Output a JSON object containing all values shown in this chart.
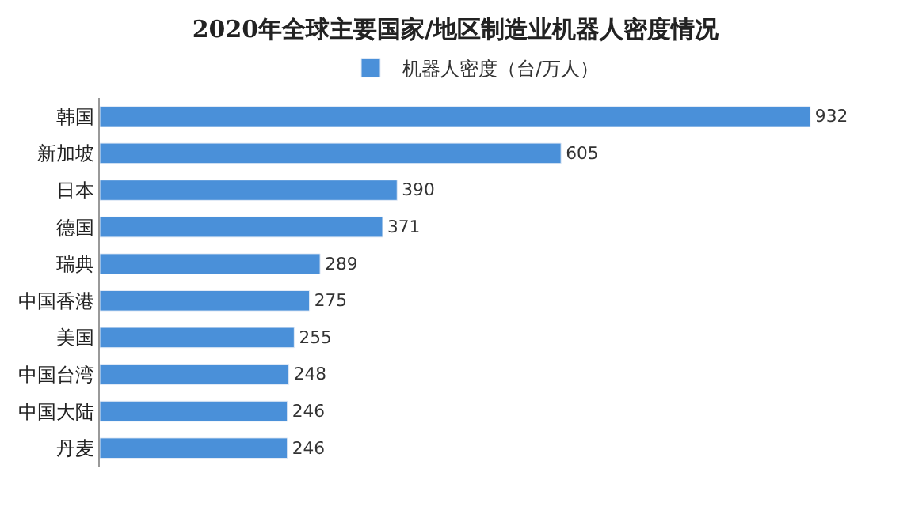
{
  "chart_data": {
    "type": "bar",
    "orientation": "horizontal",
    "title": "2020年全球主要国家/地区制造业机器人密度情况",
    "categories": [
      "韩国",
      "新加坡",
      "日本",
      "德国",
      "瑞典",
      "中国香港",
      "美国",
      "中国台湾",
      "中国大陆",
      "丹麦"
    ],
    "series": [
      {
        "name": "机器人密度（台/万人）",
        "color": "#4a90d9",
        "values": [
          932,
          605,
          390,
          371,
          289,
          275,
          255,
          248,
          246,
          246
        ]
      }
    ],
    "data_labels": true,
    "legend": "top",
    "tick_labels": "y"
  }
}
